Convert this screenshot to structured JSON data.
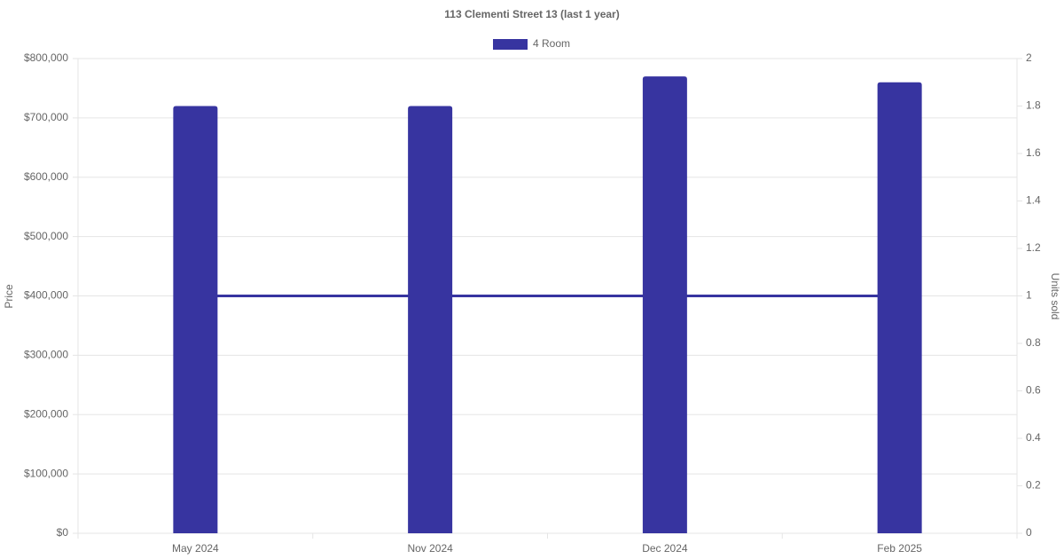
{
  "chart_data": {
    "type": "bar",
    "title": "113 Clementi Street 13 (last 1 year)",
    "categories": [
      "May 2024",
      "Nov 2024",
      "Dec 2024",
      "Feb 2025"
    ],
    "series": [
      {
        "name": "4 Room",
        "color": "#3734a0",
        "values": [
          720000,
          720000,
          770000,
          760000
        ]
      },
      {
        "type": "line",
        "axis": "y2",
        "color": "#3734a0",
        "values": [
          1,
          1,
          1,
          1
        ]
      }
    ],
    "y_label": "Price",
    "y2_label": "Units sold",
    "ylim": [
      0,
      800000
    ],
    "yticks": [
      {
        "value": 0,
        "label": "$0"
      },
      {
        "value": 100000,
        "label": "$100,000"
      },
      {
        "value": 200000,
        "label": "$200,000"
      },
      {
        "value": 300000,
        "label": "$300,000"
      },
      {
        "value": 400000,
        "label": "$400,000"
      },
      {
        "value": 500000,
        "label": "$500,000"
      },
      {
        "value": 600000,
        "label": "$600,000"
      },
      {
        "value": 700000,
        "label": "$700,000"
      },
      {
        "value": 800000,
        "label": "$800,000"
      }
    ],
    "y2lim": [
      0,
      2
    ],
    "y2ticks": [
      0,
      0.2,
      0.4,
      0.6,
      0.8,
      1,
      1.2,
      1.4,
      1.6,
      1.8,
      2
    ],
    "grid": true,
    "legend": "top"
  }
}
